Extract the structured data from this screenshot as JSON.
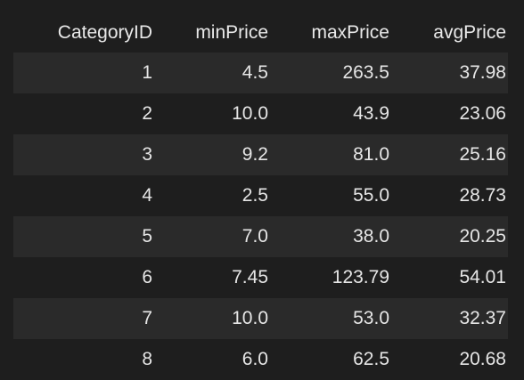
{
  "table": {
    "columns": [
      "CategoryID",
      "minPrice",
      "maxPrice",
      "avgPrice"
    ],
    "rows": [
      [
        "1",
        "4.5",
        "263.5",
        "37.98"
      ],
      [
        "2",
        "10.0",
        "43.9",
        "23.06"
      ],
      [
        "3",
        "9.2",
        "81.0",
        "25.16"
      ],
      [
        "4",
        "2.5",
        "55.0",
        "28.73"
      ],
      [
        "5",
        "7.0",
        "38.0",
        "20.25"
      ],
      [
        "6",
        "7.45",
        "123.79",
        "54.01"
      ],
      [
        "7",
        "10.0",
        "53.0",
        "32.37"
      ],
      [
        "8",
        "6.0",
        "62.5",
        "20.68"
      ]
    ]
  },
  "colors": {
    "background": "#1e1e1e",
    "stripe": "#2a2a2a",
    "text": "#e6e6e6"
  }
}
